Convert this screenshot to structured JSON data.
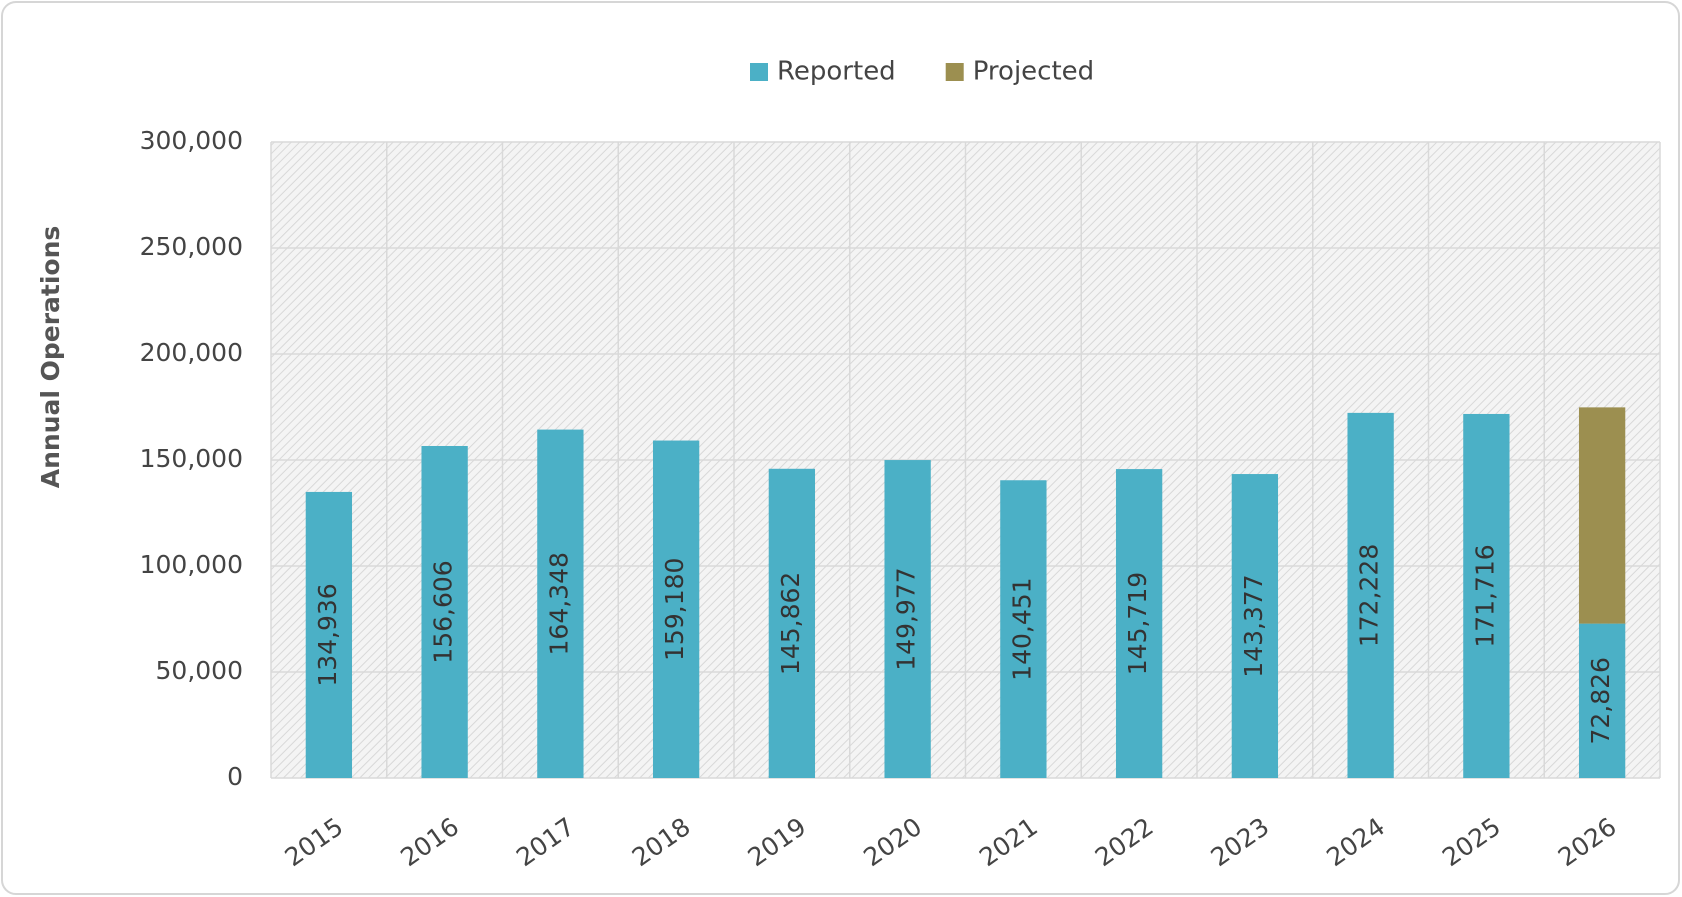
{
  "chart_data": {
    "type": "stacked_bar",
    "y_label": "Annual Operations",
    "categories": [
      "2015",
      "2016",
      "2017",
      "2018",
      "2019",
      "2020",
      "2021",
      "2022",
      "2023",
      "2024",
      "2025",
      "2026"
    ],
    "series": [
      {
        "name": "Reported",
        "color": "#4bb0c6",
        "values": [
          134936,
          156606,
          164348,
          159180,
          145862,
          149977,
          140451,
          145719,
          143377,
          172228,
          171716,
          72826
        ],
        "value_labels": [
          "134,936",
          "156,606",
          "164,348",
          "159,180",
          "145,862",
          "149,977",
          "140,451",
          "145,719",
          "143,377",
          "172,228",
          "171,716",
          "72,826"
        ]
      },
      {
        "name": "Projected",
        "color": "#9c8f50",
        "values": [
          null,
          null,
          null,
          null,
          null,
          null,
          null,
          null,
          null,
          null,
          null,
          102000
        ]
      }
    ],
    "ylim": [
      0,
      300000
    ],
    "yticks": [
      0,
      {
        "value": 50000,
        "label": "50,000"
      },
      {
        "value": 100000,
        "label": "100,000"
      },
      {
        "value": 150000,
        "label": "150,000"
      },
      {
        "value": 200000,
        "label": "200,000"
      },
      {
        "value": 250000,
        "label": "250,000"
      },
      {
        "value": 300000,
        "label": "300,000"
      }
    ],
    "grid": true,
    "legend": "top"
  }
}
